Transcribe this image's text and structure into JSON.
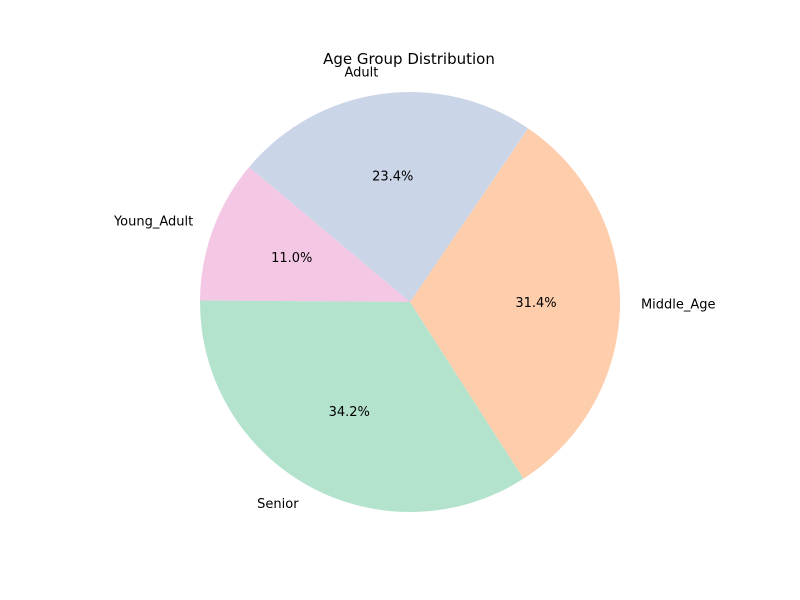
{
  "chart_data": {
    "type": "pie",
    "title": "Age Group Distribution",
    "start_angle_deg": 140,
    "direction": "counterclockwise",
    "slices": [
      {
        "label": "Young_Adult",
        "value": 11.0,
        "pct_label": "11.0%",
        "color": "#f4c8e4"
      },
      {
        "label": "Senior",
        "value": 34.2,
        "pct_label": "34.2%",
        "color": "#b3e2cd"
      },
      {
        "label": "Middle_Age",
        "value": 31.4,
        "pct_label": "31.4%",
        "color": "#fdcdac"
      },
      {
        "label": "Adult",
        "value": 23.4,
        "pct_label": "23.4%",
        "color": "#cbd5e8"
      }
    ]
  }
}
